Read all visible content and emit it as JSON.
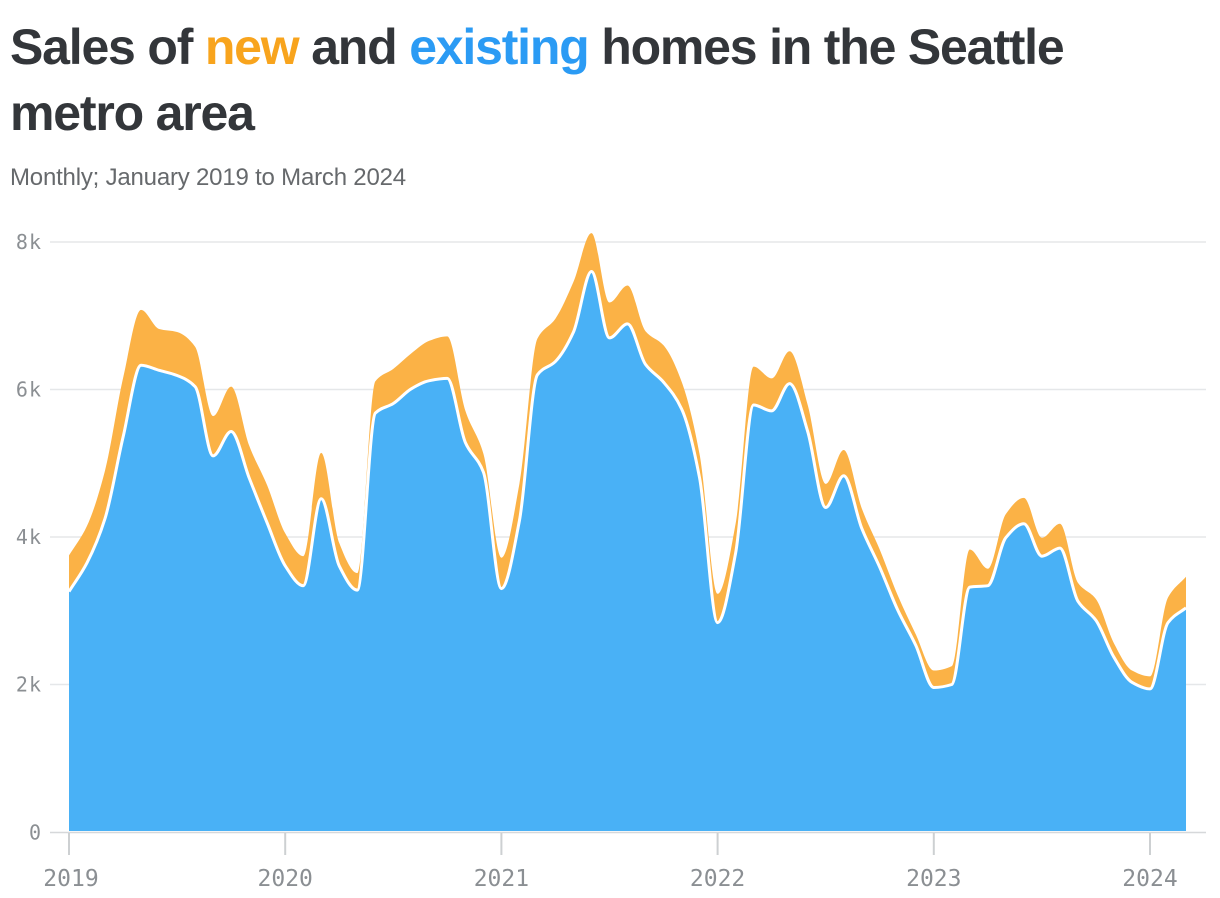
{
  "palette": {
    "title_dark": "#33363A",
    "title_orange": "#F8A41D",
    "title_blue": "#2B9BF4",
    "area_orange": "#FBB246",
    "area_blue": "#49B1F6",
    "separator": "#FFFFFF",
    "axis_label": "#8B8F93",
    "gridline": "#E5E7E9"
  },
  "header": {
    "title_lines": [
      {
        "parts": [
          {
            "text": "Sales of ",
            "style": "dark"
          },
          {
            "text": "new",
            "style": "orange"
          },
          {
            "text": " and ",
            "style": "dark"
          },
          {
            "text": "existing",
            "style": "blue"
          },
          {
            "text": " homes in the Seattle",
            "style": "dark"
          }
        ]
      },
      {
        "parts": [
          {
            "text": "metro area",
            "style": "dark"
          }
        ]
      }
    ],
    "subtitle": "Monthly; January 2019 to March 2024"
  },
  "chart_data": {
    "type": "area",
    "stacked": true,
    "title": "Sales of new and existing homes in the Seattle metro area",
    "subtitle": "Monthly; January 2019 to March 2024",
    "x_unit": "month",
    "x_start": "2019-01",
    "x_end": "2024-03",
    "n_points": 63,
    "ylim": [
      0,
      8200
    ],
    "grid": "horizontal",
    "legend_position": "colored-words-in-title",
    "y_tick_values": [
      0,
      2000,
      4000,
      6000,
      8000
    ],
    "y_tick_labels": [
      "0",
      "2k",
      "4k",
      "6k",
      "8k"
    ],
    "x_tick_labels": [
      "2019",
      "2020",
      "2021",
      "2022",
      "2023",
      "2024"
    ],
    "series": [
      {
        "name": "existing homes",
        "title_word": "existing",
        "color": "#49B1F6",
        "values": [
          3260,
          3650,
          4250,
          5350,
          6330,
          6260,
          6190,
          6040,
          5100,
          5430,
          4800,
          4190,
          3610,
          3340,
          4520,
          3610,
          3280,
          5680,
          5810,
          6010,
          6120,
          6150,
          5280,
          4880,
          3300,
          4220,
          6200,
          6380,
          6780,
          7600,
          6700,
          6890,
          6340,
          6100,
          5740,
          4800,
          2840,
          3780,
          5790,
          5710,
          6080,
          5430,
          4400,
          4830,
          4120,
          3590,
          3010,
          2530,
          1960,
          2000,
          3320,
          3340,
          3990,
          4180,
          3740,
          3850,
          3130,
          2870,
          2370,
          2030,
          1940,
          2840,
          3040
        ]
      },
      {
        "name": "new homes",
        "title_word": "new",
        "color": "#FBB246",
        "values": [
          490,
          500,
          650,
          800,
          750,
          560,
          590,
          540,
          540,
          610,
          440,
          510,
          440,
          400,
          620,
          310,
          230,
          430,
          470,
          480,
          540,
          570,
          430,
          250,
          420,
          500,
          490,
          580,
          680,
          520,
          480,
          520,
          450,
          500,
          370,
          320,
          390,
          400,
          520,
          440,
          440,
          360,
          320,
          350,
          270,
          240,
          200,
          150,
          230,
          250,
          510,
          230,
          320,
          350,
          250,
          330,
          250,
          290,
          190,
          160,
          170,
          340,
          420
        ]
      }
    ],
    "separator_color": "#FFFFFF",
    "notable_points": {
      "peak_total": {
        "month": "2021-06",
        "value": 8120
      },
      "min_total": {
        "month": "2024-01",
        "value": 2110
      }
    }
  }
}
